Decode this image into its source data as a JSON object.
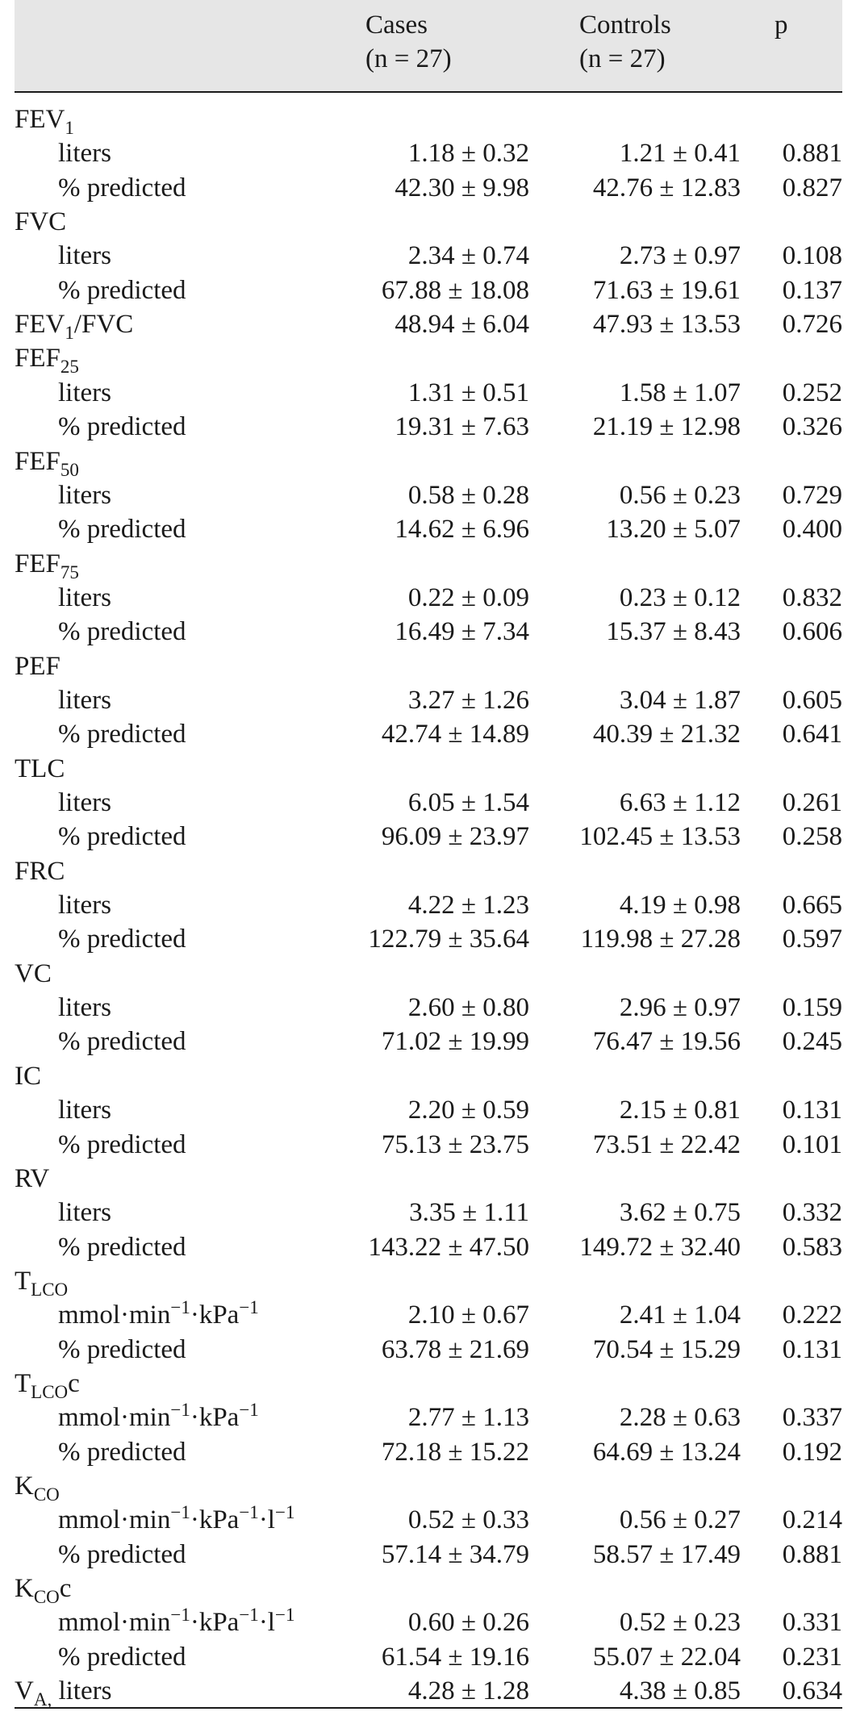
{
  "header": {
    "col1": [
      "Cases",
      "(n = 27)"
    ],
    "col2": [
      "Controls",
      "(n = 27)"
    ],
    "col3": "p"
  },
  "rows": [
    {
      "type": "group",
      "label": "FEV",
      "sub": "1"
    },
    {
      "type": "sub",
      "label": "liters",
      "cases": "1.18 ± 0.32",
      "controls": "1.21 ± 0.41",
      "p": "0.881"
    },
    {
      "type": "sub",
      "label": "% predicted",
      "cases": "42.30 ± 9.98",
      "controls": "42.76 ± 12.83",
      "p": "0.827"
    },
    {
      "type": "group",
      "label": "FVC"
    },
    {
      "type": "sub",
      "label": "liters",
      "cases": "2.34 ± 0.74",
      "controls": "2.73 ± 0.97",
      "p": "0.108"
    },
    {
      "type": "sub",
      "label": "% predicted",
      "cases": "67.88 ± 18.08",
      "controls": "71.63 ± 19.61",
      "p": "0.137"
    },
    {
      "type": "group",
      "label": "FEV",
      "sub": "1",
      "suffix": "/FVC",
      "cases": "48.94 ± 6.04",
      "controls": "47.93 ± 13.53",
      "p": "0.726"
    },
    {
      "type": "group",
      "label": "FEF",
      "sub": "25"
    },
    {
      "type": "sub",
      "label": "liters",
      "cases": "1.31 ± 0.51",
      "controls": "1.58 ± 1.07",
      "p": "0.252"
    },
    {
      "type": "sub",
      "label": "% predicted",
      "cases": "19.31 ± 7.63",
      "controls": "21.19 ± 12.98",
      "p": "0.326"
    },
    {
      "type": "group",
      "label": "FEF",
      "sub": "50"
    },
    {
      "type": "sub",
      "label": "liters",
      "cases": "0.58 ± 0.28",
      "controls": "0.56 ± 0.23",
      "p": "0.729"
    },
    {
      "type": "sub",
      "label": "% predicted",
      "cases": "14.62 ± 6.96",
      "controls": "13.20 ± 5.07",
      "p": "0.400"
    },
    {
      "type": "group",
      "label": "FEF",
      "sub": "75"
    },
    {
      "type": "sub",
      "label": "liters",
      "cases": "0.22 ± 0.09",
      "controls": "0.23 ± 0.12",
      "p": "0.832"
    },
    {
      "type": "sub",
      "label": "% predicted",
      "cases": "16.49 ± 7.34",
      "controls": "15.37 ± 8.43",
      "p": "0.606"
    },
    {
      "type": "group",
      "label": "PEF"
    },
    {
      "type": "sub",
      "label": "liters",
      "cases": "3.27 ± 1.26",
      "controls": "3.04 ± 1.87",
      "p": "0.605"
    },
    {
      "type": "sub",
      "label": "% predicted",
      "cases": "42.74 ± 14.89",
      "controls": "40.39 ± 21.32",
      "p": "0.641"
    },
    {
      "type": "group",
      "label": "TLC"
    },
    {
      "type": "sub",
      "label": "liters",
      "cases": "6.05 ± 1.54",
      "controls": "6.63 ± 1.12",
      "p": "0.261"
    },
    {
      "type": "sub",
      "label": "% predicted",
      "cases": "96.09 ± 23.97",
      "controls": "102.45 ± 13.53",
      "p": "0.258"
    },
    {
      "type": "group",
      "label": "FRC"
    },
    {
      "type": "sub",
      "label": "liters",
      "cases": "4.22 ± 1.23",
      "controls": "4.19 ± 0.98",
      "p": "0.665"
    },
    {
      "type": "sub",
      "label": "% predicted",
      "cases": "122.79 ± 35.64",
      "controls": "119.98 ± 27.28",
      "p": "0.597"
    },
    {
      "type": "group",
      "label": "VC"
    },
    {
      "type": "sub",
      "label": "liters",
      "cases": "2.60 ± 0.80",
      "controls": "2.96 ± 0.97",
      "p": "0.159"
    },
    {
      "type": "sub",
      "label": "% predicted",
      "cases": "71.02 ± 19.99",
      "controls": "76.47 ± 19.56",
      "p": "0.245"
    },
    {
      "type": "group",
      "label": "IC"
    },
    {
      "type": "sub",
      "label": "liters",
      "cases": "2.20 ± 0.59",
      "controls": "2.15 ± 0.81",
      "p": "0.131"
    },
    {
      "type": "sub",
      "label": "% predicted",
      "cases": "75.13 ± 23.75",
      "controls": "73.51 ± 22.42",
      "p": "0.101"
    },
    {
      "type": "group",
      "label": "RV"
    },
    {
      "type": "sub",
      "label": "liters",
      "cases": "3.35 ± 1.11",
      "controls": "3.62 ± 0.75",
      "p": "0.332"
    },
    {
      "type": "sub",
      "label": "% predicted",
      "cases": "143.22 ± 47.50",
      "controls": "149.72 ± 32.40",
      "p": "0.583"
    },
    {
      "type": "group",
      "label": "T",
      "sub": "LCO"
    },
    {
      "type": "sub",
      "unit": "kpa",
      "cases": "2.10 ± 0.67",
      "controls": "2.41 ± 1.04",
      "p": "0.222"
    },
    {
      "type": "sub",
      "label": "% predicted",
      "cases": "63.78 ± 21.69",
      "controls": "70.54 ± 15.29",
      "p": "0.131"
    },
    {
      "type": "group",
      "label": "T",
      "sub": "LCO",
      "suffix": "c"
    },
    {
      "type": "sub",
      "unit": "kpa",
      "cases": "2.77 ± 1.13",
      "controls": "2.28 ± 0.63",
      "p": "0.337"
    },
    {
      "type": "sub",
      "label": "% predicted",
      "cases": "72.18 ± 15.22",
      "controls": "64.69 ± 13.24",
      "p": "0.192"
    },
    {
      "type": "group",
      "label": "K",
      "sub": "CO"
    },
    {
      "type": "sub",
      "unit": "kpal",
      "cases": "0.52 ± 0.33",
      "controls": "0.56 ± 0.27",
      "p": "0.214"
    },
    {
      "type": "sub",
      "label": "% predicted",
      "cases": "57.14 ± 34.79",
      "controls": "58.57 ± 17.49",
      "p": "0.881"
    },
    {
      "type": "group",
      "label": "K",
      "sub": "CO",
      "suffix": "c"
    },
    {
      "type": "sub",
      "unit": "kpal",
      "cases": "0.60 ± 0.26",
      "controls": "0.52 ± 0.23",
      "p": "0.331"
    },
    {
      "type": "sub",
      "label": "% predicted",
      "cases": "61.54 ± 19.16",
      "controls": "55.07 ± 22.04",
      "p": "0.231"
    },
    {
      "type": "group",
      "label": "V",
      "sub": "A,",
      "suffix": " liters",
      "cases": "4.28 ± 1.28",
      "controls": "4.38 ± 0.85",
      "p": "0.634"
    }
  ]
}
